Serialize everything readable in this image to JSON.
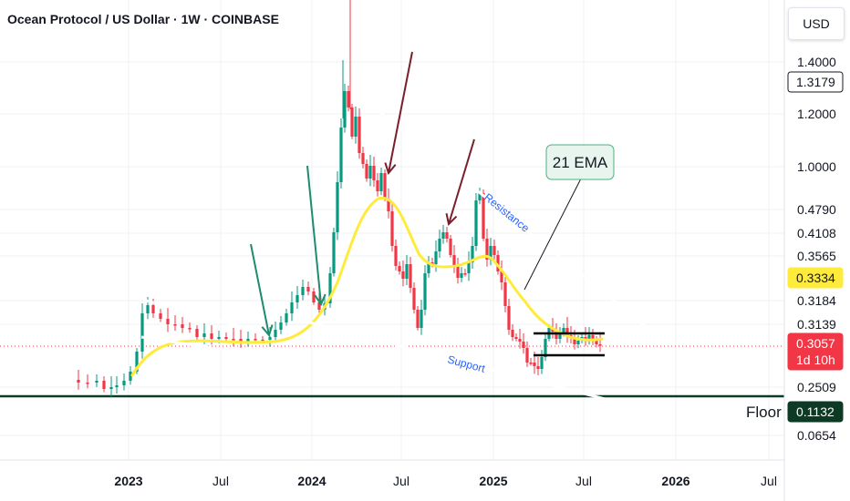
{
  "header": {
    "title": "Ocean Protocol / US Dollar · 1W · COINBASE",
    "currency_button": "USD"
  },
  "chart_data": {
    "type": "candlestick",
    "symbol": "Ocean Protocol / US Dollar",
    "interval": "1W",
    "exchange": "COINBASE",
    "y_scale": "log",
    "y_ticks": [
      {
        "label": "1.4000",
        "value": 1.4
      },
      {
        "label": "1.2000",
        "value": 1.2
      },
      {
        "label": "1.0000",
        "value": 1.0
      },
      {
        "label": "0.4790",
        "value": 0.479
      },
      {
        "label": "0.4108",
        "value": 0.4108
      },
      {
        "label": "0.3565",
        "value": 0.3565
      },
      {
        "label": "0.3184",
        "value": 0.3184
      },
      {
        "label": "0.3139",
        "value": 0.3139
      },
      {
        "label": "0.2509",
        "value": 0.2509
      },
      {
        "label": "0.0654",
        "value": 0.0654
      }
    ],
    "price_tags": [
      {
        "label": "1.3179",
        "value": 1.3179,
        "style": "outlined",
        "color": "#ffffff"
      },
      {
        "label": "0.3334",
        "value": 0.3334,
        "style": "filled",
        "color": "#ffeb3b"
      },
      {
        "label": "0.3057",
        "sub": "1d 10h",
        "value": 0.3057,
        "style": "filled",
        "color": "#f23645"
      },
      {
        "label": "0.1132",
        "value": 0.1132,
        "style": "filled",
        "color": "#0d3a24"
      }
    ],
    "x_ticks": [
      {
        "label": "2023",
        "bold": true
      },
      {
        "label": "Jul",
        "bold": false
      },
      {
        "label": "2024",
        "bold": true
      },
      {
        "label": "Jul",
        "bold": false
      },
      {
        "label": "2025",
        "bold": true
      },
      {
        "label": "Jul",
        "bold": false
      },
      {
        "label": "2026",
        "bold": true
      },
      {
        "label": "Jul",
        "bold": false
      }
    ],
    "annotations": {
      "ema_label": "21 EMA",
      "resistance_label": "Resistance",
      "support_label": "Support",
      "floor_label": "Floor"
    },
    "colors": {
      "up": "#089981",
      "down": "#f23645",
      "ema": "#ffeb3b",
      "trendline": "#ffffff",
      "floor_line": "#0d3a24",
      "green_arrow": "#1e8c6e",
      "dark_red_arrow": "#7a1e2a",
      "grid": "#eef0f3"
    }
  }
}
